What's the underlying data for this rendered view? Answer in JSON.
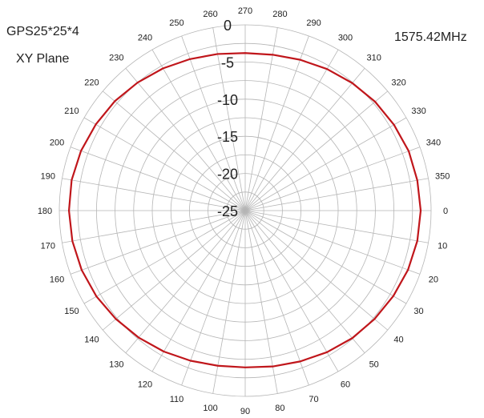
{
  "header": {
    "left_line1": "GPS25*25*4",
    "left_line2": "XY Plane",
    "right": "1575.42MHz"
  },
  "chart_data": {
    "type": "polar-line",
    "angle_unit": "deg",
    "angle_zero": "right",
    "angle_direction": "clockwise",
    "angle_ticks": [
      0,
      10,
      20,
      30,
      40,
      50,
      60,
      70,
      80,
      90,
      100,
      110,
      120,
      130,
      140,
      150,
      160,
      170,
      180,
      190,
      200,
      210,
      220,
      230,
      240,
      250,
      260,
      270,
      280,
      290,
      300,
      310,
      320,
      330,
      340,
      350
    ],
    "radial_ticks": [
      "0",
      "-5",
      "-10",
      "-15",
      "-20",
      "-25"
    ],
    "radial_range": [
      -25,
      0
    ],
    "grid": true,
    "series": [
      {
        "color": "#c0161b",
        "angles": [
          0,
          10,
          20,
          30,
          40,
          50,
          60,
          70,
          80,
          90,
          100,
          110,
          120,
          130,
          140,
          150,
          160,
          170,
          180,
          190,
          200,
          210,
          220,
          230,
          240,
          250,
          260,
          270,
          280,
          290,
          300,
          310,
          320,
          330,
          340,
          350
        ],
        "values": [
          -1.4,
          -1.5,
          -1.7,
          -2.0,
          -2.3,
          -2.6,
          -3.0,
          -3.4,
          -3.7,
          -3.9,
          -3.8,
          -3.5,
          -3.1,
          -2.7,
          -2.3,
          -1.9,
          -1.6,
          -1.4,
          -1.3,
          -1.3,
          -1.5,
          -1.8,
          -2.1,
          -2.5,
          -2.9,
          -3.3,
          -3.6,
          -3.8,
          -3.7,
          -3.4,
          -3.0,
          -2.6,
          -2.2,
          -1.9,
          -1.6,
          -1.5
        ]
      }
    ]
  }
}
